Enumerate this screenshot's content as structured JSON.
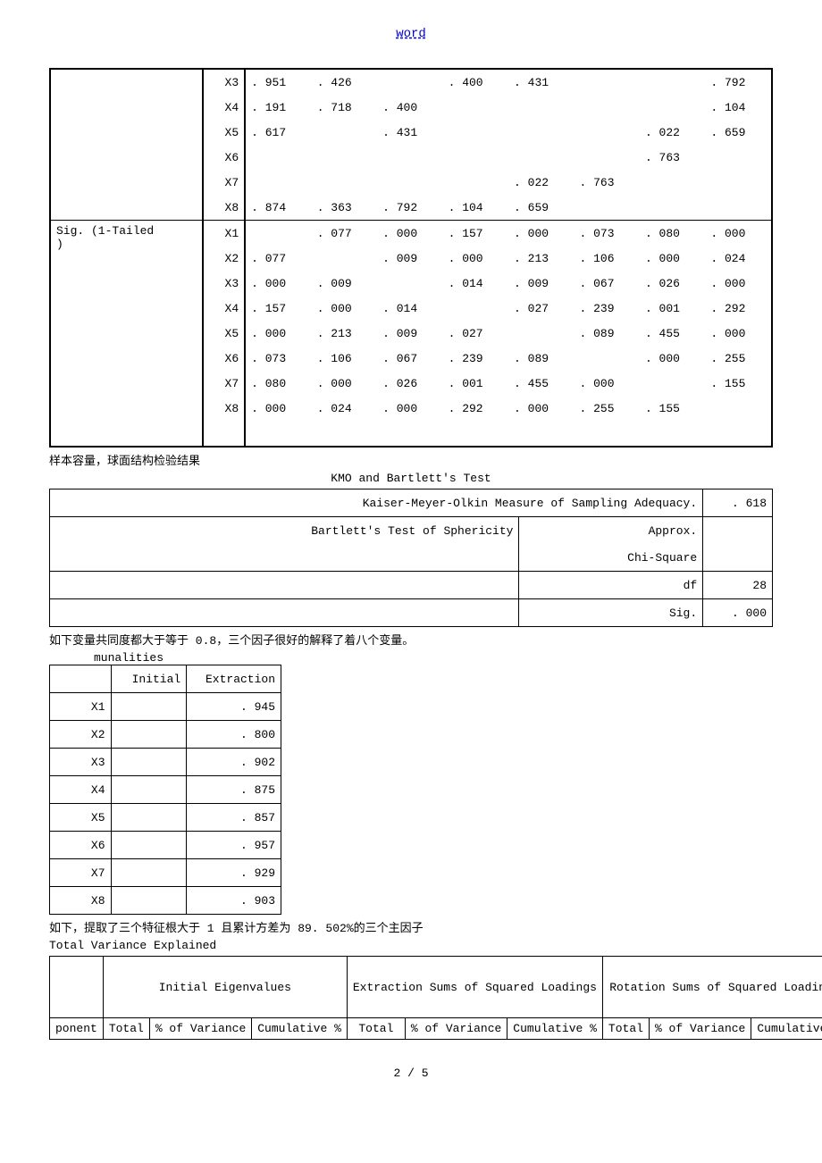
{
  "header_link": "word",
  "corr_table": {
    "group1_label": "",
    "group2_label": "Sig. (1-Tailed)",
    "vars": [
      "X1",
      "X2",
      "X3",
      "X4",
      "X5",
      "X6",
      "X7",
      "X8"
    ],
    "upper_rows": [
      {
        "var": "X3",
        "vals": [
          ". 951",
          ". 426",
          "",
          ". 400",
          ". 431",
          "",
          "",
          ". 792"
        ]
      },
      {
        "var": "X4",
        "vals": [
          ". 191",
          ". 718",
          ". 400",
          "",
          "",
          "",
          "",
          ". 104"
        ]
      },
      {
        "var": "X5",
        "vals": [
          ". 617",
          "",
          ". 431",
          "",
          "",
          "",
          ". 022",
          ". 659"
        ]
      },
      {
        "var": "X6",
        "vals": [
          "",
          "",
          "",
          "",
          "",
          "",
          ". 763",
          ""
        ]
      },
      {
        "var": "X7",
        "vals": [
          "",
          "",
          "",
          "",
          ". 022",
          ". 763",
          "",
          ""
        ]
      },
      {
        "var": "X8",
        "vals": [
          ". 874",
          ". 363",
          ". 792",
          ". 104",
          ". 659",
          "",
          "",
          ""
        ]
      }
    ],
    "sig_rows": [
      {
        "var": "X1",
        "vals": [
          "",
          ". 077",
          ". 000",
          ". 157",
          ". 000",
          ". 073",
          ". 080",
          ". 000"
        ]
      },
      {
        "var": "X2",
        "vals": [
          ". 077",
          "",
          ". 009",
          ". 000",
          ". 213",
          ". 106",
          ". 000",
          ". 024"
        ]
      },
      {
        "var": "X3",
        "vals": [
          ". 000",
          ". 009",
          "",
          ". 014",
          ". 009",
          ". 067",
          ". 026",
          ". 000"
        ]
      },
      {
        "var": "X4",
        "vals": [
          ". 157",
          ". 000",
          ". 014",
          "",
          ". 027",
          ". 239",
          ". 001",
          ". 292"
        ]
      },
      {
        "var": "X5",
        "vals": [
          ". 000",
          ". 213",
          ". 009",
          ". 027",
          "",
          ". 089",
          ". 455",
          ". 000"
        ]
      },
      {
        "var": "X6",
        "vals": [
          ". 073",
          ". 106",
          ". 067",
          ". 239",
          ". 089",
          "",
          ". 000",
          ". 255"
        ]
      },
      {
        "var": "X7",
        "vals": [
          ". 080",
          ". 000",
          ". 026",
          ". 001",
          ". 455",
          ". 000",
          "",
          ". 155"
        ]
      },
      {
        "var": "X8",
        "vals": [
          ". 000",
          ". 024",
          ". 000",
          ". 292",
          ". 000",
          ". 255",
          ". 155",
          ""
        ]
      }
    ]
  },
  "caption_sample": "样本容量，球面结构检验结果",
  "kmo": {
    "title": "KMO and Bartlett's Test",
    "row1_label": "Kaiser-Meyer-Olkin Measure of Sampling Adequacy.",
    "row1_val": ". 618",
    "row2_label": "Bartlett's Test of Sphericity",
    "row2_sub": "Approx.",
    "row2b_sub": "Chi-Square",
    "row3_sub": "df",
    "row3_val": "28",
    "row4_sub": "Sig.",
    "row4_val": ". 000"
  },
  "caption_comm": "如下变量共同度都大于等于 0.8，三个因子很好的解释了着八个变量。",
  "comm": {
    "title": "munalities",
    "col1": "",
    "col2": "Initial",
    "col3": "Extraction",
    "rows": [
      {
        "v": "X1",
        "e": ". 945"
      },
      {
        "v": "X2",
        "e": ". 800"
      },
      {
        "v": "X3",
        "e": ". 902"
      },
      {
        "v": "X4",
        "e": ". 875"
      },
      {
        "v": "X5",
        "e": ". 857"
      },
      {
        "v": "X6",
        "e": ". 957"
      },
      {
        "v": "X7",
        "e": ". 929"
      },
      {
        "v": "X8",
        "e": ". 903"
      }
    ]
  },
  "caption_var": "如下，提取了三个特征根大于 1 且累计方差为 89. 502%的三个主因子",
  "var_explained": {
    "title": "Total Variance Explained",
    "h1": "Initial Eigenvalues",
    "h2": "Extraction Sums of Squared Loadings",
    "h3": "Rotation Sums of Squared Loadings",
    "s0": "ponent",
    "s1": "Total",
    "s2": "% of Variance",
    "s3": "Cumulative %",
    "s4": "Total",
    "s5": "% of Variance",
    "s6": "Cumulative %",
    "s7": "Total",
    "s8": "% of Variance",
    "s9": "Cumulative %"
  },
  "footer": "2 / 5"
}
